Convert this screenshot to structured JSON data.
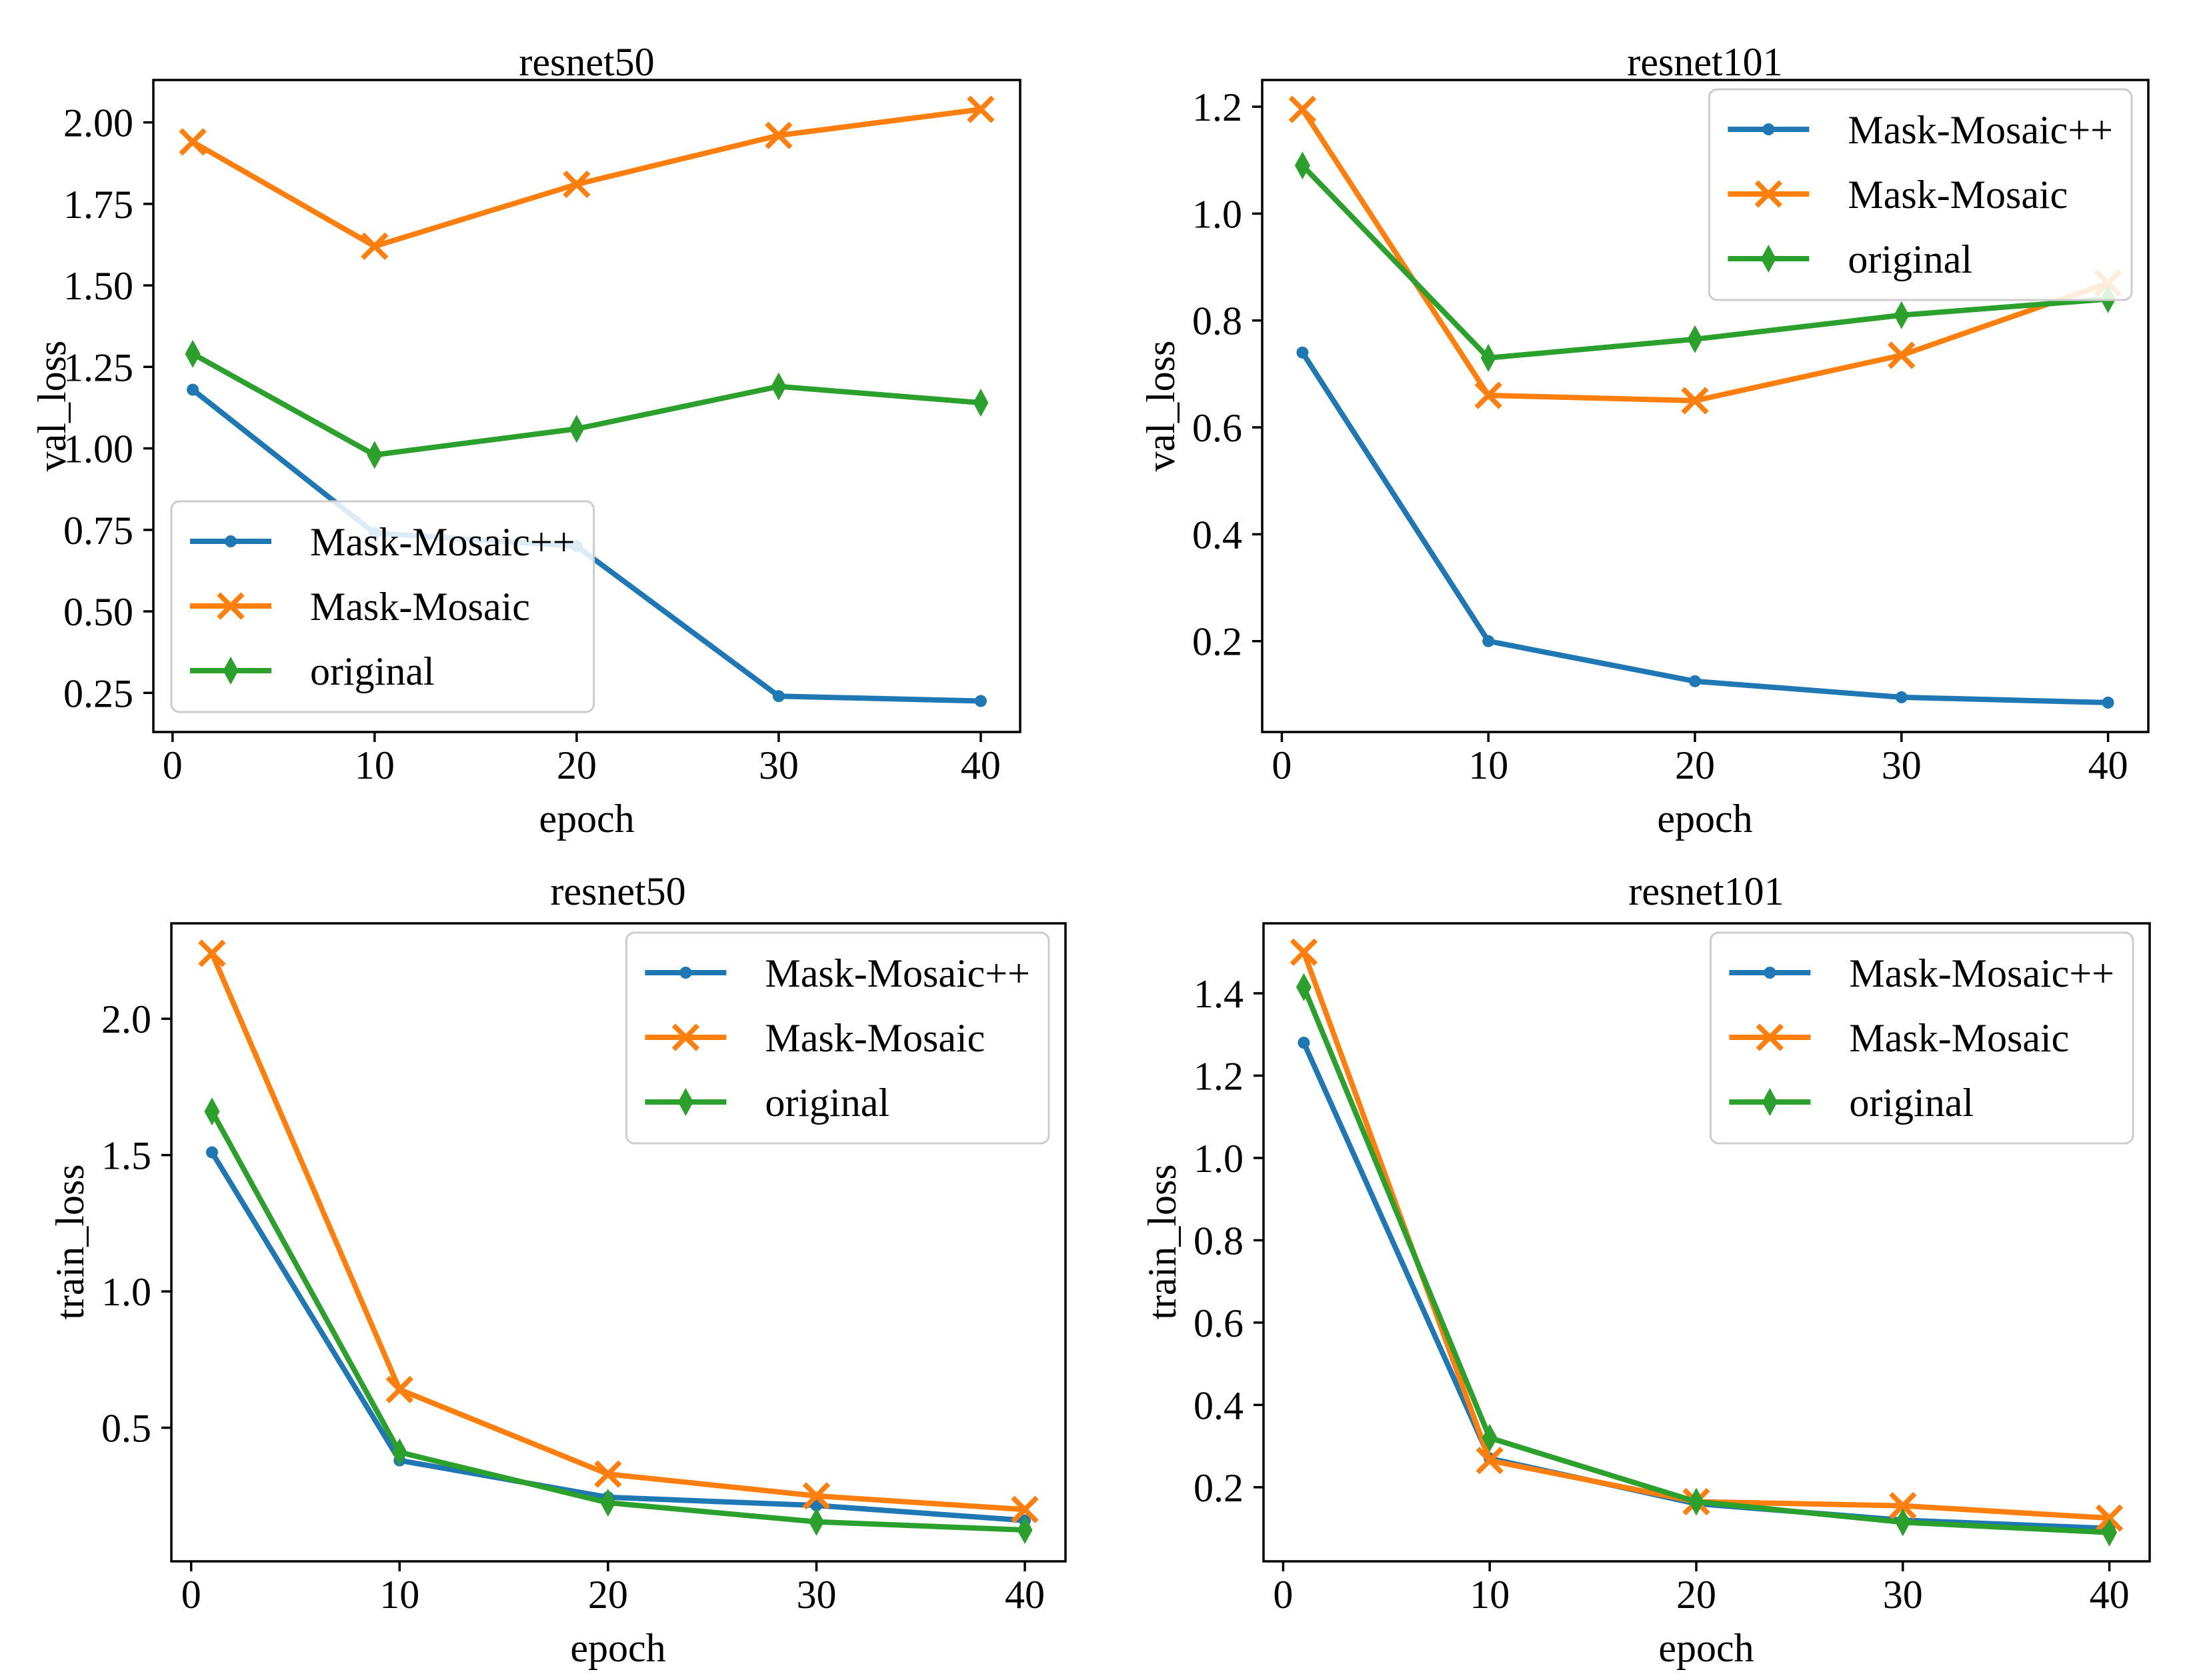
{
  "figure": {
    "background": "#ffffff",
    "text_color": "#000000",
    "spine_color": "#000000",
    "legend_border_color": "#cccccc",
    "legend_fill": "#ffffff"
  },
  "chart_data": [
    {
      "type": "line",
      "title": "resnet50",
      "xlabel": "epoch",
      "ylabel": "val_loss",
      "x": [
        1,
        10,
        20,
        30,
        40
      ],
      "xticks": [
        0,
        10,
        20,
        30,
        40
      ],
      "xlim": [
        -0.95,
        41.95
      ],
      "yticks": [
        0.25,
        0.5,
        0.75,
        1.0,
        1.25,
        1.5,
        1.75,
        2.0
      ],
      "ytick_decimals": 2,
      "ylim": [
        0.13,
        2.13
      ],
      "grid": false,
      "legend_position": "lower-left",
      "series": [
        {
          "name": "Mask-Mosaic++",
          "color": "#1f77b4",
          "marker": "circle",
          "values": [
            1.18,
            0.74,
            0.7,
            0.24,
            0.225
          ]
        },
        {
          "name": "Mask-Mosaic",
          "color": "#ff7f0e",
          "marker": "x",
          "values": [
            1.94,
            1.62,
            1.81,
            1.96,
            2.04
          ]
        },
        {
          "name": "original",
          "color": "#2ca02c",
          "marker": "thin-diamond",
          "values": [
            1.29,
            0.98,
            1.06,
            1.19,
            1.14
          ]
        }
      ]
    },
    {
      "type": "line",
      "title": "resnet101",
      "xlabel": "epoch",
      "ylabel": "val_loss",
      "x": [
        1,
        10,
        20,
        30,
        40
      ],
      "xticks": [
        0,
        10,
        20,
        30,
        40
      ],
      "xlim": [
        -0.95,
        41.95
      ],
      "yticks": [
        0.2,
        0.4,
        0.6,
        0.8,
        1.0,
        1.2
      ],
      "ytick_decimals": 1,
      "ylim": [
        0.03,
        1.25
      ],
      "grid": false,
      "legend_position": "upper-right",
      "series": [
        {
          "name": "Mask-Mosaic++",
          "color": "#1f77b4",
          "marker": "circle",
          "values": [
            0.74,
            0.2,
            0.125,
            0.095,
            0.085
          ]
        },
        {
          "name": "Mask-Mosaic",
          "color": "#ff7f0e",
          "marker": "x",
          "values": [
            1.195,
            0.66,
            0.65,
            0.735,
            0.87
          ]
        },
        {
          "name": "original",
          "color": "#2ca02c",
          "marker": "thin-diamond",
          "values": [
            1.09,
            0.73,
            0.765,
            0.81,
            0.84
          ]
        }
      ]
    },
    {
      "type": "line",
      "title": "resnet50",
      "xlabel": "epoch",
      "ylabel": "train_loss",
      "x": [
        1,
        10,
        20,
        30,
        40
      ],
      "xticks": [
        0,
        10,
        20,
        30,
        40
      ],
      "xlim": [
        -0.95,
        41.95
      ],
      "yticks": [
        0.5,
        1.0,
        1.5,
        2.0
      ],
      "ytick_decimals": 1,
      "ylim": [
        0.01,
        2.35
      ],
      "grid": false,
      "legend_position": "upper-right",
      "series": [
        {
          "name": "Mask-Mosaic++",
          "color": "#1f77b4",
          "marker": "circle",
          "values": [
            1.51,
            0.38,
            0.245,
            0.215,
            0.16
          ]
        },
        {
          "name": "Mask-Mosaic",
          "color": "#ff7f0e",
          "marker": "x",
          "values": [
            2.24,
            0.64,
            0.33,
            0.25,
            0.2
          ]
        },
        {
          "name": "original",
          "color": "#2ca02c",
          "marker": "thin-diamond",
          "values": [
            1.66,
            0.41,
            0.225,
            0.155,
            0.125
          ]
        }
      ]
    },
    {
      "type": "line",
      "title": "resnet101",
      "xlabel": "epoch",
      "ylabel": "train_loss",
      "x": [
        1,
        10,
        20,
        30,
        40
      ],
      "xticks": [
        0,
        10,
        20,
        30,
        40
      ],
      "xlim": [
        -0.95,
        41.95
      ],
      "yticks": [
        0.2,
        0.4,
        0.6,
        0.8,
        1.0,
        1.2,
        1.4
      ],
      "ytick_decimals": 1,
      "ylim": [
        0.02,
        1.57
      ],
      "grid": false,
      "legend_position": "upper-right",
      "series": [
        {
          "name": "Mask-Mosaic++",
          "color": "#1f77b4",
          "marker": "circle",
          "values": [
            1.28,
            0.27,
            0.16,
            0.12,
            0.1
          ]
        },
        {
          "name": "Mask-Mosaic",
          "color": "#ff7f0e",
          "marker": "x",
          "values": [
            1.5,
            0.265,
            0.165,
            0.155,
            0.125
          ]
        },
        {
          "name": "original",
          "color": "#2ca02c",
          "marker": "thin-diamond",
          "values": [
            1.415,
            0.32,
            0.165,
            0.115,
            0.09
          ]
        }
      ]
    }
  ]
}
